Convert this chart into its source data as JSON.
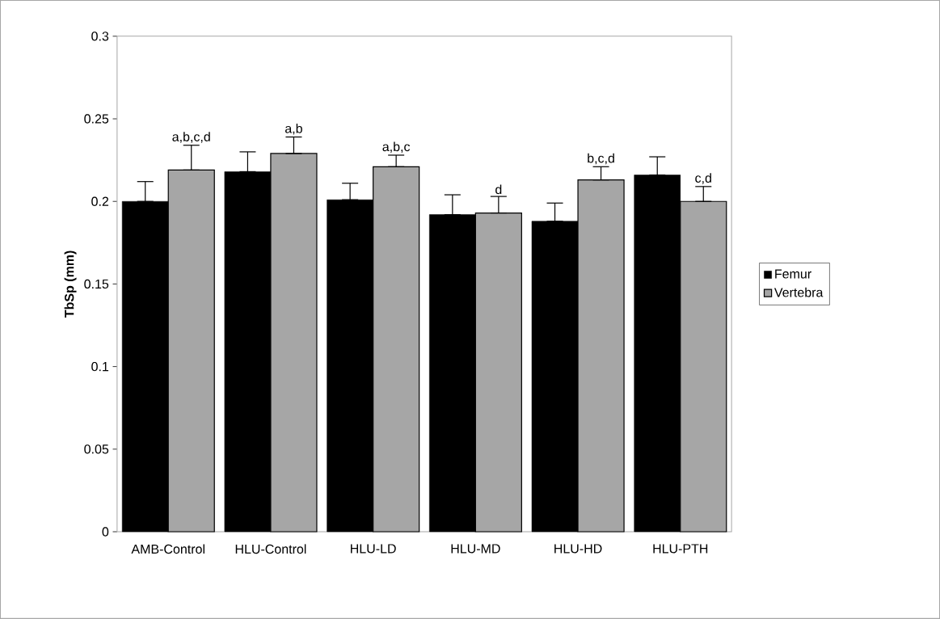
{
  "chart_data": {
    "type": "bar",
    "ylabel": "TbSp (mm)",
    "categories": [
      "AMB-Control",
      "HLU-Control",
      "HLU-LD",
      "HLU-MD",
      "HLU-HD",
      "HLU-PTH"
    ],
    "series": [
      {
        "name": "Femur",
        "color": "#000000",
        "values": [
          0.2,
          0.218,
          0.201,
          0.192,
          0.188,
          0.216
        ],
        "errors": [
          [
            0.2,
            0.212
          ],
          [
            0.218,
            0.23
          ],
          [
            0.201,
            0.211
          ],
          [
            0.192,
            0.204
          ],
          [
            0.188,
            0.199
          ],
          [
            0.216,
            0.227
          ]
        ]
      },
      {
        "name": "Vertebra",
        "color": "#a6a6a6",
        "values": [
          0.219,
          0.229,
          0.221,
          0.193,
          0.213,
          0.2
        ],
        "errors": [
          [
            0.219,
            0.234
          ],
          [
            0.229,
            0.239
          ],
          [
            0.221,
            0.228
          ],
          [
            0.193,
            0.203
          ],
          [
            0.213,
            0.221
          ],
          [
            0.2,
            0.209
          ]
        ]
      }
    ],
    "ylim": [
      0,
      0.3
    ],
    "yticks": [
      0,
      0.05,
      0.1,
      0.15,
      0.2,
      0.25,
      0.3
    ],
    "annotations": [
      "a,b,c,d",
      "a,b",
      "a,b,c",
      "d",
      "b,c,d",
      "c,d"
    ],
    "legend": "right",
    "grid": false
  }
}
